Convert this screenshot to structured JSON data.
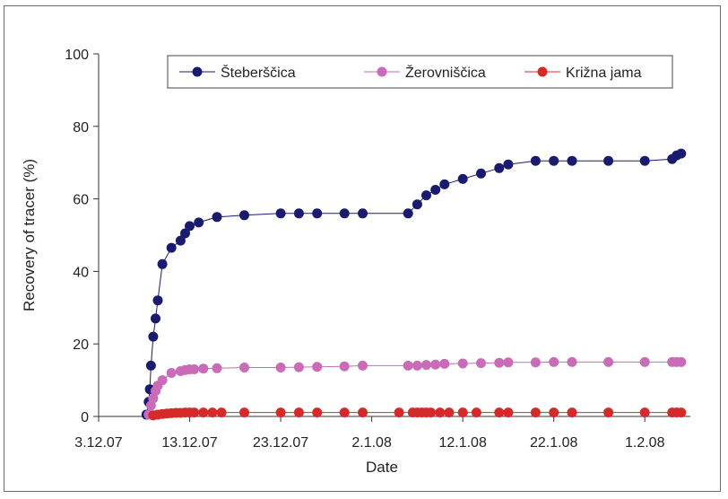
{
  "chart_data": {
    "type": "line",
    "xlabel": "Date",
    "ylabel": "Recovery of tracer (%)",
    "ylim": [
      0,
      100
    ],
    "yticks": [
      0,
      20,
      40,
      60,
      80,
      100
    ],
    "xlim": [
      "2007-12-03",
      "2008-02-06"
    ],
    "xticks": [
      {
        "date": "2007-12-03",
        "label": "3.12.07"
      },
      {
        "date": "2007-12-13",
        "label": "13.12.07"
      },
      {
        "date": "2007-12-23",
        "label": "23.12.07"
      },
      {
        "date": "2008-01-02",
        "label": "2.1.08"
      },
      {
        "date": "2008-01-12",
        "label": "12.1.08"
      },
      {
        "date": "2008-01-22",
        "label": "22.1.08"
      },
      {
        "date": "2008-02-01",
        "label": "1.2.08"
      }
    ],
    "grid": false,
    "legend_position": "top-right",
    "series": [
      {
        "name": "Šteberščica",
        "color": "#1a1a6e",
        "points": [
          [
            "2007-12-08T06:00",
            0.5
          ],
          [
            "2007-12-08T12:00",
            4
          ],
          [
            "2007-12-08T15:00",
            7.5
          ],
          [
            "2007-12-08T18:00",
            14
          ],
          [
            "2007-12-09T00:00",
            22
          ],
          [
            "2007-12-09T06:00",
            27
          ],
          [
            "2007-12-09T12:00",
            32
          ],
          [
            "2007-12-10T00:00",
            42
          ],
          [
            "2007-12-11T00:00",
            46.5
          ],
          [
            "2007-12-12T00:00",
            48.5
          ],
          [
            "2007-12-12T12:00",
            50.5
          ],
          [
            "2007-12-13T00:00",
            52.5
          ],
          [
            "2007-12-14T00:00",
            53.5
          ],
          [
            "2007-12-16T00:00",
            55
          ],
          [
            "2007-12-19T00:00",
            55.5
          ],
          [
            "2007-12-23T00:00",
            56
          ],
          [
            "2007-12-25T00:00",
            56
          ],
          [
            "2007-12-27T00:00",
            56
          ],
          [
            "2007-12-30T00:00",
            56
          ],
          [
            "2008-01-01T00:00",
            56
          ],
          [
            "2008-01-06T00:00",
            56
          ],
          [
            "2008-01-07T00:00",
            58.5
          ],
          [
            "2008-01-08T00:00",
            61
          ],
          [
            "2008-01-09T00:00",
            62.5
          ],
          [
            "2008-01-10T00:00",
            64
          ],
          [
            "2008-01-12T00:00",
            65.5
          ],
          [
            "2008-01-14T00:00",
            67
          ],
          [
            "2008-01-16T00:00",
            68.5
          ],
          [
            "2008-01-17T00:00",
            69.5
          ],
          [
            "2008-01-20T00:00",
            70.5
          ],
          [
            "2008-01-22T00:00",
            70.5
          ],
          [
            "2008-01-24T00:00",
            70.5
          ],
          [
            "2008-01-28T00:00",
            70.5
          ],
          [
            "2008-02-01T00:00",
            70.5
          ],
          [
            "2008-02-04T00:00",
            71
          ],
          [
            "2008-02-04T12:00",
            72
          ],
          [
            "2008-02-05T00:00",
            72.5
          ]
        ]
      },
      {
        "name": "Žerovniščica",
        "color": "#c96bb6",
        "points": [
          [
            "2007-12-08T12:00",
            0.5
          ],
          [
            "2007-12-08T18:00",
            3
          ],
          [
            "2007-12-09T00:00",
            5
          ],
          [
            "2007-12-09T06:00",
            7
          ],
          [
            "2007-12-09T12:00",
            8.5
          ],
          [
            "2007-12-10T00:00",
            10
          ],
          [
            "2007-12-11T00:00",
            12
          ],
          [
            "2007-12-12T00:00",
            12.5
          ],
          [
            "2007-12-12T12:00",
            12.8
          ],
          [
            "2007-12-13T00:00",
            13
          ],
          [
            "2007-12-13T12:00",
            13
          ],
          [
            "2007-12-14T12:00",
            13.2
          ],
          [
            "2007-12-16T00:00",
            13.3
          ],
          [
            "2007-12-19T00:00",
            13.5
          ],
          [
            "2007-12-23T00:00",
            13.5
          ],
          [
            "2007-12-25T00:00",
            13.6
          ],
          [
            "2007-12-27T00:00",
            13.7
          ],
          [
            "2007-12-30T00:00",
            13.8
          ],
          [
            "2008-01-01T00:00",
            14
          ],
          [
            "2008-01-06T00:00",
            14
          ],
          [
            "2008-01-07T00:00",
            14
          ],
          [
            "2008-01-08T00:00",
            14.2
          ],
          [
            "2008-01-09T00:00",
            14.3
          ],
          [
            "2008-01-10T00:00",
            14.5
          ],
          [
            "2008-01-12T00:00",
            14.6
          ],
          [
            "2008-01-14T00:00",
            14.7
          ],
          [
            "2008-01-16T00:00",
            14.8
          ],
          [
            "2008-01-17T00:00",
            14.9
          ],
          [
            "2008-01-20T00:00",
            14.9
          ],
          [
            "2008-01-22T00:00",
            15
          ],
          [
            "2008-01-24T00:00",
            15
          ],
          [
            "2008-01-28T00:00",
            15
          ],
          [
            "2008-02-01T00:00",
            15
          ],
          [
            "2008-02-04T00:00",
            15
          ],
          [
            "2008-02-04T12:00",
            15
          ],
          [
            "2008-02-05T00:00",
            15
          ]
        ]
      },
      {
        "name": "Križna jama",
        "color": "#d42a2a",
        "points": [
          [
            "2007-12-09T00:00",
            0.3
          ],
          [
            "2007-12-09T12:00",
            0.5
          ],
          [
            "2007-12-10T00:00",
            0.7
          ],
          [
            "2007-12-10T12:00",
            0.8
          ],
          [
            "2007-12-11T00:00",
            0.9
          ],
          [
            "2007-12-11T12:00",
            1
          ],
          [
            "2007-12-12T00:00",
            1
          ],
          [
            "2007-12-12T12:00",
            1.1
          ],
          [
            "2007-12-13T00:00",
            1.1
          ],
          [
            "2007-12-13T12:00",
            1.1
          ],
          [
            "2007-12-14T12:00",
            1.1
          ],
          [
            "2007-12-15T12:00",
            1.1
          ],
          [
            "2007-12-16T12:00",
            1.1
          ],
          [
            "2007-12-19T00:00",
            1.1
          ],
          [
            "2007-12-23T00:00",
            1.1
          ],
          [
            "2007-12-25T00:00",
            1.1
          ],
          [
            "2007-12-27T00:00",
            1.1
          ],
          [
            "2007-12-30T00:00",
            1.1
          ],
          [
            "2008-01-01T00:00",
            1.1
          ],
          [
            "2008-01-05T00:00",
            1.1
          ],
          [
            "2008-01-06T12:00",
            1.1
          ],
          [
            "2008-01-07T00:00",
            1.1
          ],
          [
            "2008-01-07T12:00",
            1.1
          ],
          [
            "2008-01-08T00:00",
            1.1
          ],
          [
            "2008-01-08T12:00",
            1.1
          ],
          [
            "2008-01-09T12:00",
            1.1
          ],
          [
            "2008-01-10T12:00",
            1.1
          ],
          [
            "2008-01-12T00:00",
            1.1
          ],
          [
            "2008-01-13T12:00",
            1.1
          ],
          [
            "2008-01-16T00:00",
            1.1
          ],
          [
            "2008-01-17T00:00",
            1.1
          ],
          [
            "2008-01-20T00:00",
            1.1
          ],
          [
            "2008-01-22T00:00",
            1.1
          ],
          [
            "2008-01-24T00:00",
            1.1
          ],
          [
            "2008-01-28T00:00",
            1.1
          ],
          [
            "2008-02-01T00:00",
            1.1
          ],
          [
            "2008-02-04T00:00",
            1.1
          ],
          [
            "2008-02-04T12:00",
            1.1
          ],
          [
            "2008-02-05T00:00",
            1.1
          ]
        ]
      }
    ]
  }
}
